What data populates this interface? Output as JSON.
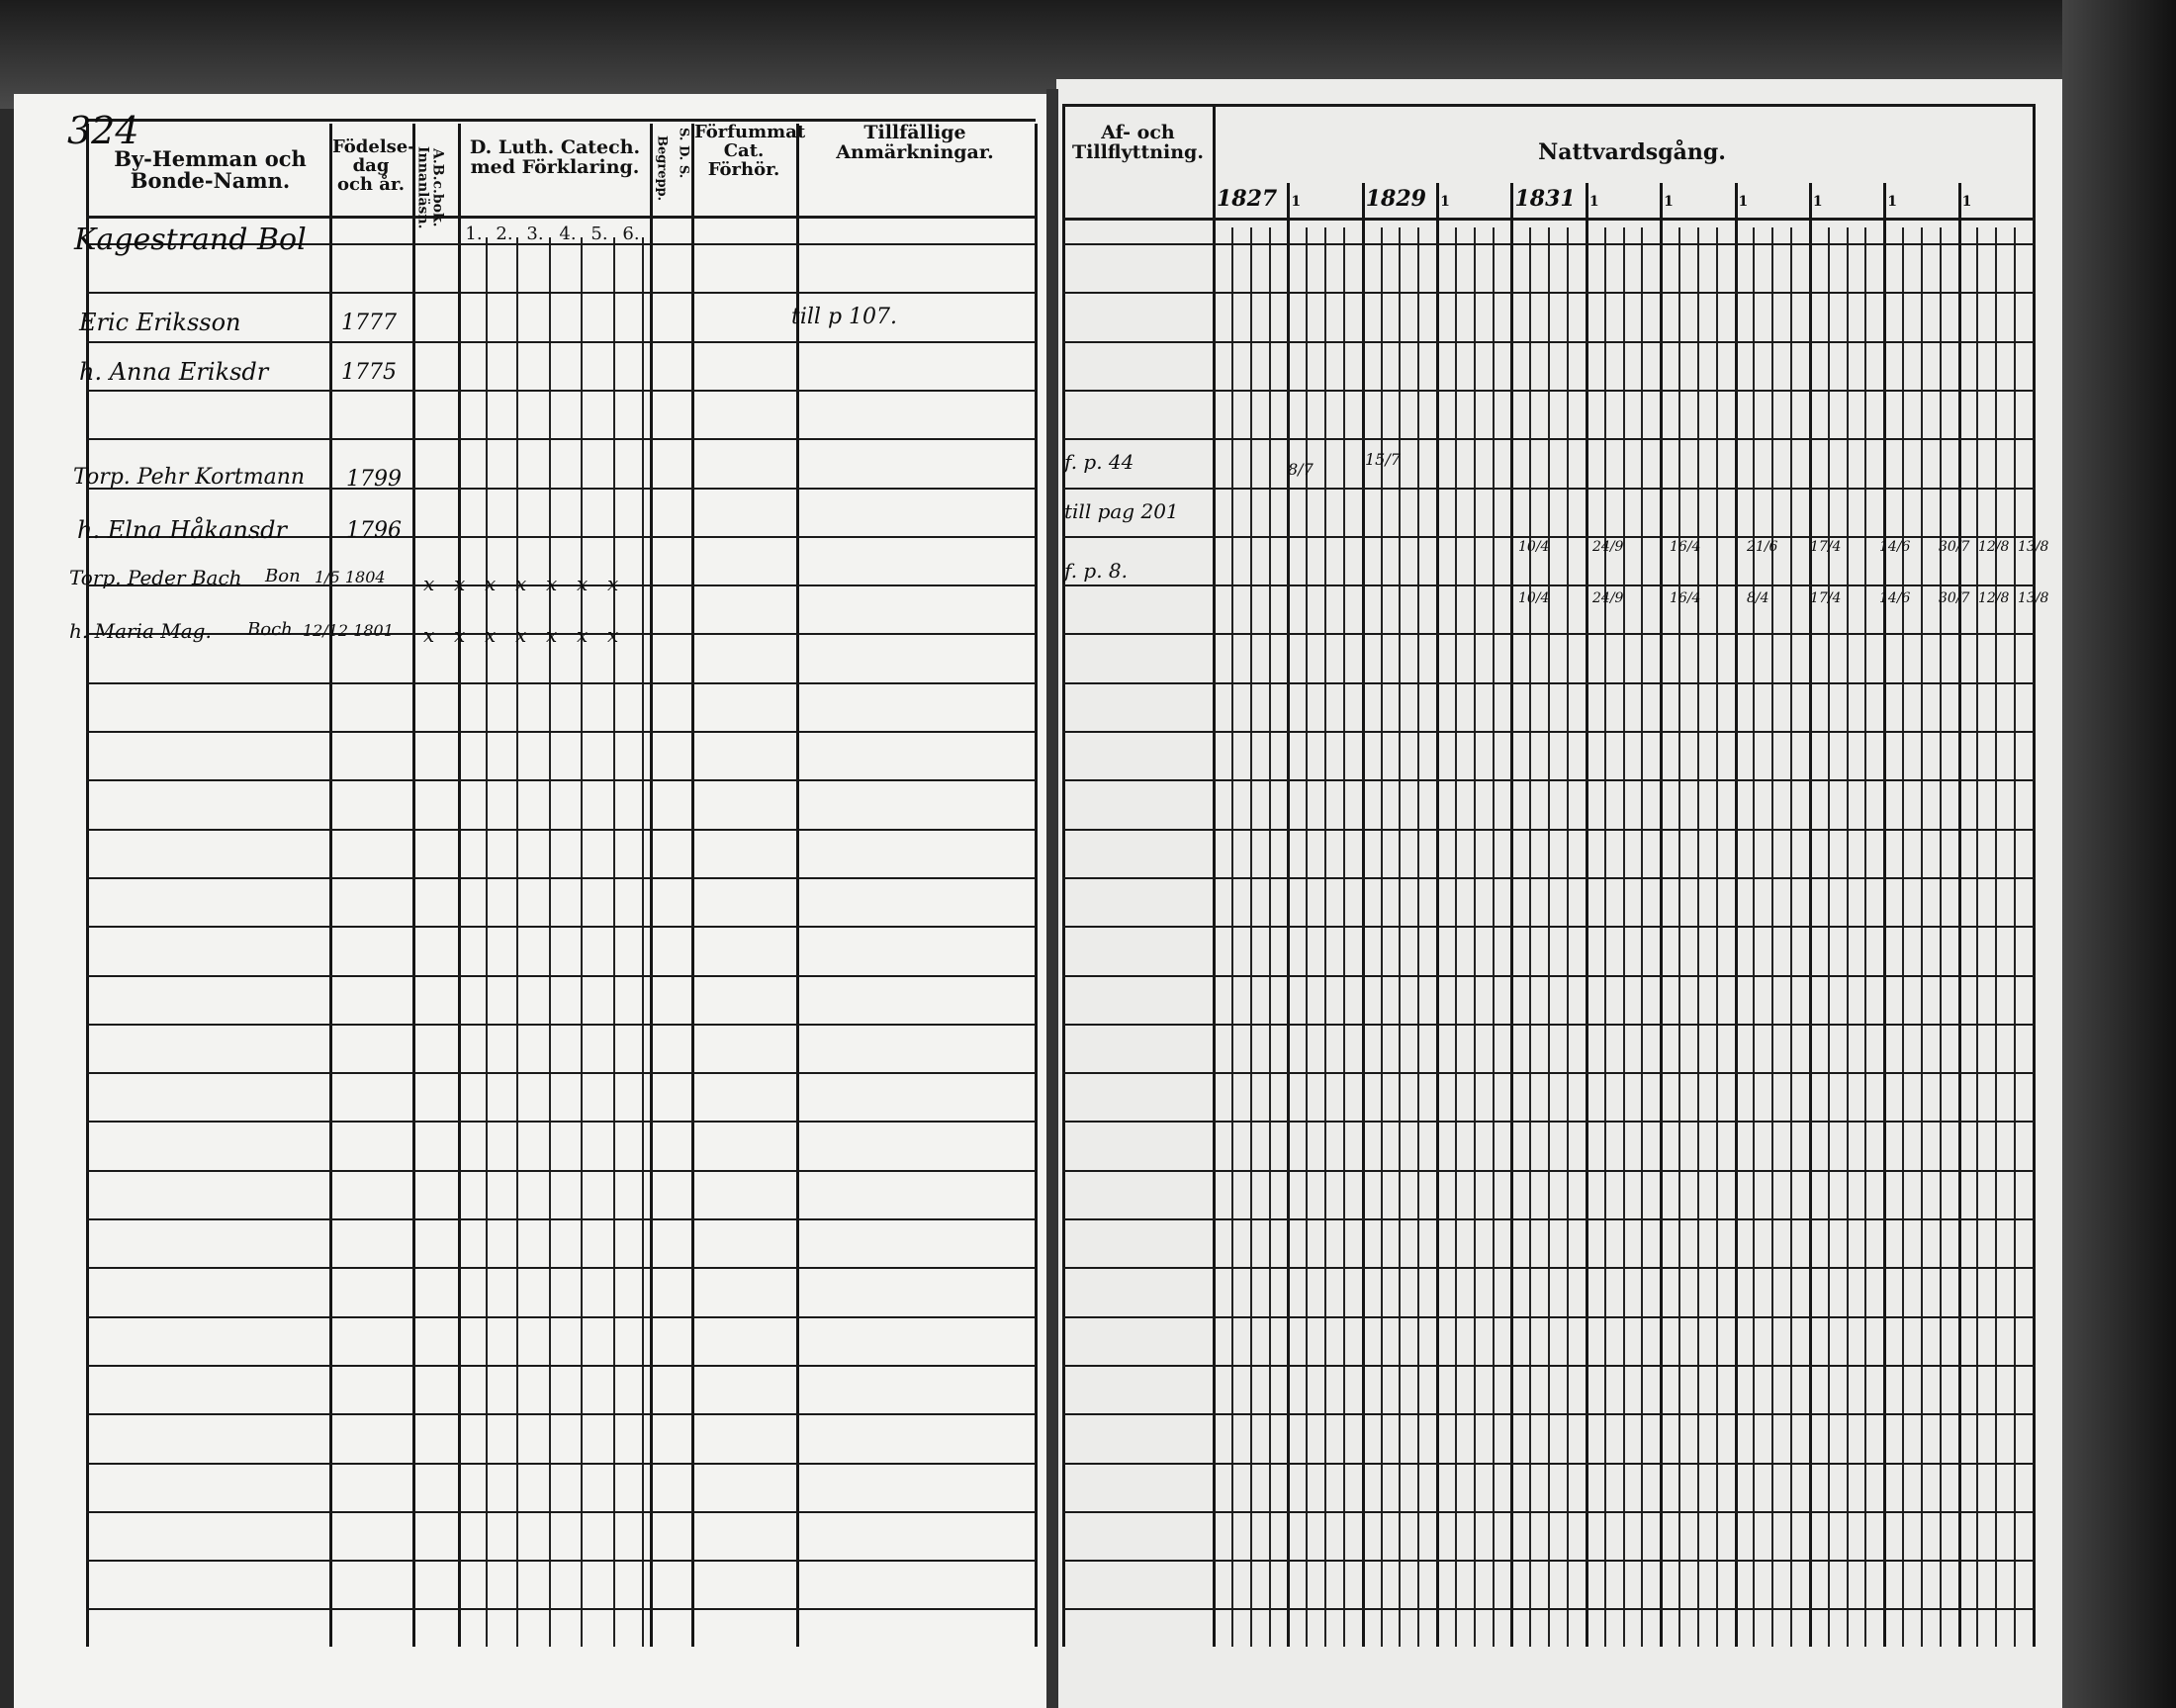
{
  "page_number": "324",
  "left_page": {
    "headers": {
      "name": "By-Hemman och Bonde-Namn.",
      "birth": "Födelse-dag och år.",
      "abc": "A.B.c.bok. Innanläsn.",
      "catechism": "D. Luth. Catech. med Förklaring.",
      "catechism_numbers": [
        "1.",
        "2.",
        "3.",
        "4.",
        "5.",
        "6."
      ],
      "begrepp": "Begrepp.",
      "sds": "S. D. S.",
      "forhor": "Förfummat Cat. Förhör.",
      "remarks": "Tillfällige Anmärkningar."
    },
    "farm_name": "Kagestrand Bol",
    "entries": [
      {
        "name": "Eric Eriksson",
        "birth": "1777",
        "remark": "till p 107."
      },
      {
        "name": "h. Anna Eriksdr",
        "birth": "1775"
      },
      {
        "name": "Torp. Pehr Kortmann",
        "birth": "1799"
      },
      {
        "name": "h. Elna Håkansdr",
        "birth": "1796"
      },
      {
        "name": "Torp. Peder Bach",
        "place": "Bon",
        "birth": "1/5 1804",
        "marks": [
          "x",
          "x",
          "x",
          "x",
          "x",
          "x",
          "x"
        ]
      },
      {
        "name": "h. Maria Mag.",
        "place": "Boch",
        "birth": "12/12 1801",
        "marks": [
          "x",
          "x",
          "x",
          "x",
          "x",
          "x",
          "x"
        ]
      }
    ]
  },
  "right_page": {
    "headers": {
      "moving": "Af- och Tillflyttning.",
      "communion": "Nattvardsgång.",
      "years": [
        "1827",
        "1",
        "1829",
        "1",
        "1831",
        "1",
        "1",
        "1",
        "1",
        "1",
        "1"
      ]
    },
    "moving_notes": [
      "f. p. 44",
      "till pag 201",
      "f. p. 8."
    ],
    "communion_early": [
      "8/7",
      "15/7"
    ],
    "communion_row1": [
      "10/4",
      "24/9",
      "16/4",
      "21/6",
      "17/4",
      "14/6",
      "30/7",
      "12/8",
      "13/8"
    ],
    "communion_row2": [
      "10/4",
      "24/9",
      "16/4",
      "8/4",
      "17/4",
      "14/6",
      "30/7",
      "12/8",
      "13/8"
    ]
  }
}
